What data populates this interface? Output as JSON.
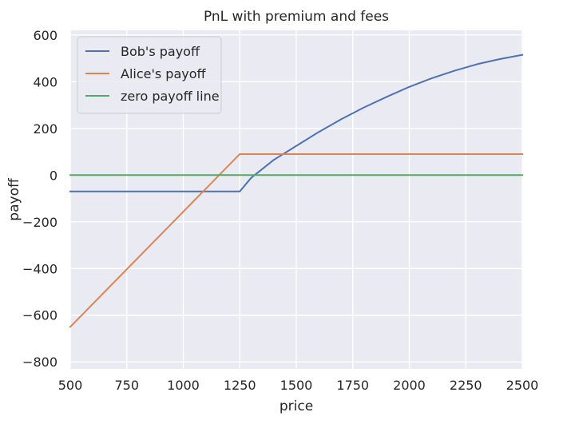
{
  "chart_data": {
    "type": "line",
    "title": "PnL with premium and fees",
    "xlabel": "price",
    "ylabel": "payoff",
    "xlim": [
      500,
      2500
    ],
    "ylim": [
      -830,
      620
    ],
    "x_ticks": [
      500,
      750,
      1000,
      1250,
      1500,
      1750,
      2000,
      2250,
      2500
    ],
    "y_ticks": [
      -800,
      -600,
      -400,
      -200,
      0,
      200,
      400,
      600
    ],
    "y_tick_labels": [
      "−800",
      "−600",
      "−400",
      "−200",
      "0",
      "200",
      "400",
      "600"
    ],
    "grid": true,
    "legend_position": "upper-left",
    "background": "#eaeaf2",
    "series": [
      {
        "name": "Bob's payoff",
        "color": "#4c72b0",
        "x": [
          500,
          1250,
          1300,
          1400,
          1500,
          1600,
          1700,
          1800,
          1900,
          2000,
          2100,
          2200,
          2300,
          2400,
          2500
        ],
        "y": [
          -70,
          -70,
          -12,
          65,
          125,
          185,
          240,
          290,
          335,
          378,
          415,
          447,
          475,
          497,
          515
        ]
      },
      {
        "name": "Alice's payoff",
        "color": "#dd8452",
        "x": [
          500,
          1250,
          2500
        ],
        "y": [
          -650,
          90,
          90
        ]
      },
      {
        "name": "zero payoff line",
        "color": "#55a868",
        "x": [
          500,
          2500
        ],
        "y": [
          0,
          0
        ]
      }
    ]
  }
}
